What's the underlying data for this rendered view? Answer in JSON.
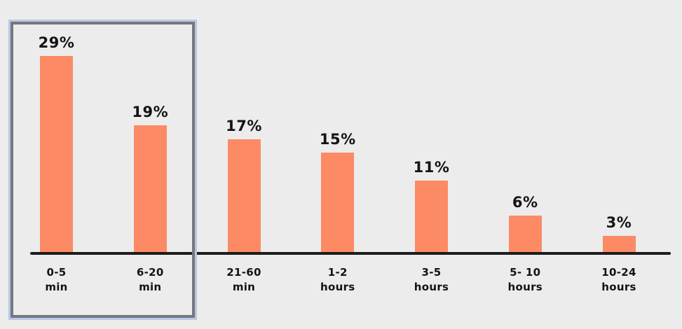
{
  "page": {
    "background_color": "#ECECEC",
    "text_color": "#131313"
  },
  "chart_data": {
    "type": "bar",
    "title": "",
    "xlabel": "",
    "ylabel": "",
    "categories": [
      "0-5\nmin",
      "6-20\nmin",
      "21-60\nmin",
      "1-2\nhours",
      "3-5\nhours",
      "5- 10\nhours",
      "10-24\nhours"
    ],
    "values": [
      29,
      19,
      17,
      15,
      11,
      6,
      3
    ],
    "data_labels": [
      "29%",
      "19%",
      "17%",
      "15%",
      "11%",
      "6%",
      "3%"
    ],
    "ylim": [
      0,
      30
    ],
    "grid": false,
    "legend": false,
    "axis_ticks_visible": false,
    "bar_color": "#FC8A64",
    "axis_color": "#1D1D1D",
    "highlight": {
      "applies_to_categories": [
        "0-5 min",
        "6-20 min"
      ],
      "inner_border_color": "#76787D",
      "outer_border_color": "#B6C8E6"
    }
  }
}
